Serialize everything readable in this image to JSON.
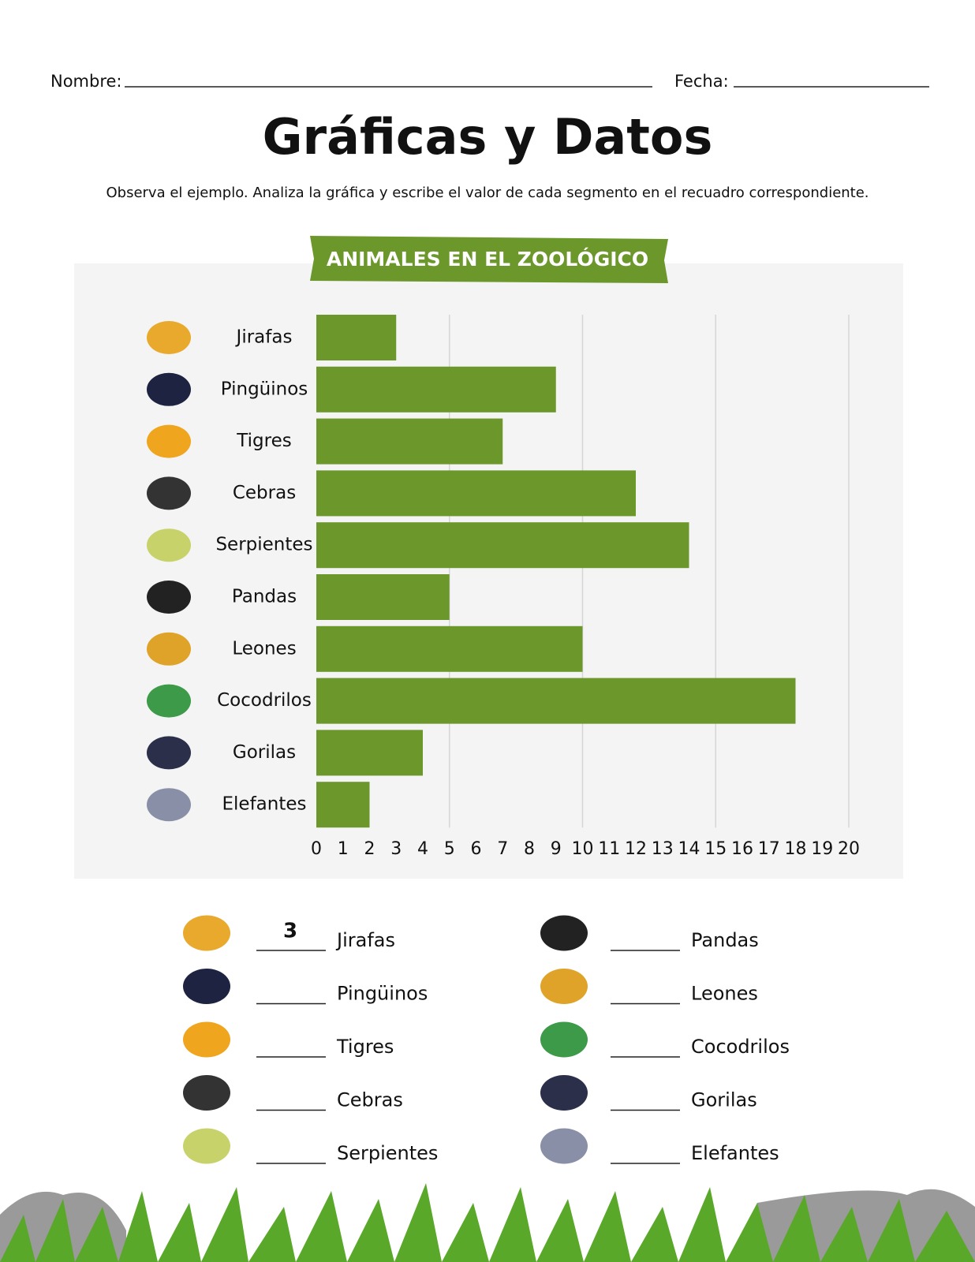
{
  "header": {
    "name_label": "Nombre:",
    "date_label": "Fecha:",
    "title": "Gráficas y Datos",
    "instructions": "Observa el ejemplo. Analiza la gráfica y escribe el valor de cada segmento en el recuadro correspondiente."
  },
  "chart_data": {
    "type": "hbar",
    "title": "ANIMALES EN EL ZOOLÓGICO",
    "categories": [
      "Jirafas",
      "Pingüinos",
      "Tigres",
      "Cebras",
      "Serpientes",
      "Pandas",
      "Leones",
      "Cocodrilos",
      "Gorilas",
      "Elefantes"
    ],
    "values": [
      3,
      9,
      7,
      12,
      14,
      5,
      10,
      18,
      4,
      2
    ],
    "color": "#6b972b",
    "xlim": [
      0,
      20
    ],
    "xticks": [
      0,
      1,
      2,
      3,
      4,
      5,
      6,
      7,
      8,
      9,
      10,
      11,
      12,
      13,
      14,
      15,
      16,
      17,
      18,
      19,
      20
    ],
    "grid": true
  },
  "worksheet": {
    "items": [
      {
        "label": "Jirafas",
        "answer": 3
      },
      {
        "label": "Pingüinos"
      },
      {
        "label": "Tigres"
      },
      {
        "label": "Cebras"
      },
      {
        "label": "Serpientes"
      },
      {
        "label": "Pandas"
      },
      {
        "label": "Leones"
      },
      {
        "label": "Cocodrilos"
      },
      {
        "label": "Gorilas"
      },
      {
        "label": "Elefantes"
      }
    ]
  }
}
